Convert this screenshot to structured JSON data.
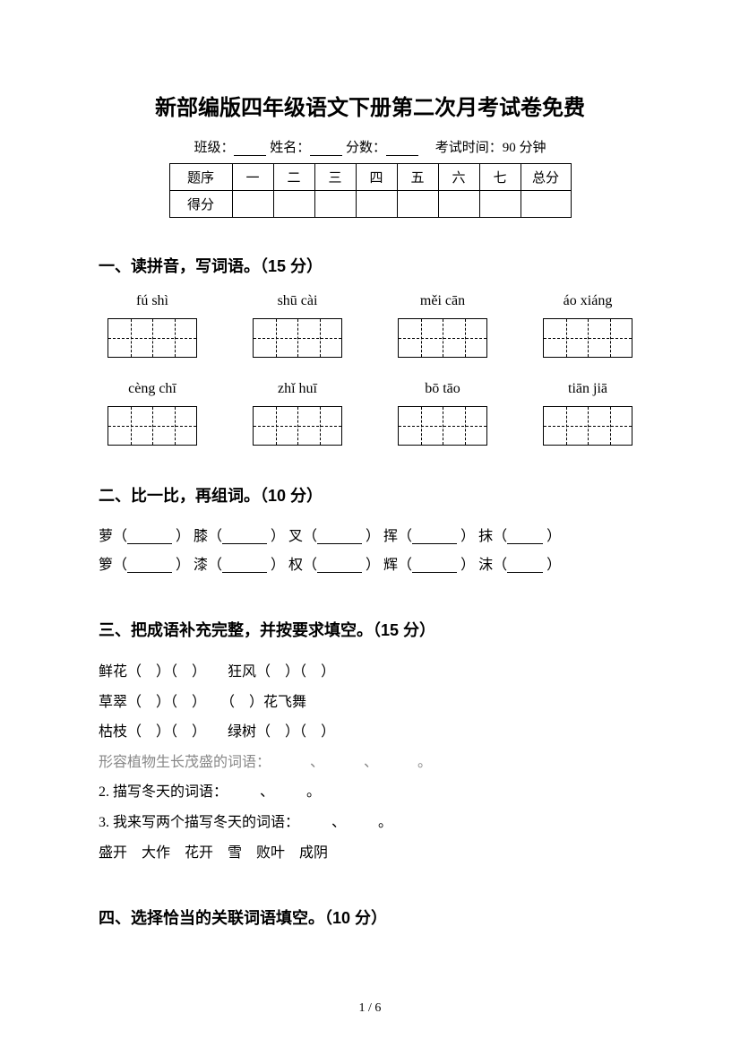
{
  "title": "新部编版四年级语文下册第二次月考试卷免费",
  "meta": {
    "class_label": "班级：",
    "name_label": "姓名：",
    "score_label": "分数：",
    "time_label": "考试时间：90 分钟"
  },
  "score_table": {
    "row1": [
      "题序",
      "一",
      "二",
      "三",
      "四",
      "五",
      "六",
      "七",
      "总分"
    ],
    "row2_label": "得分"
  },
  "s1": {
    "head": "一、读拼音，写词语。（15 分）",
    "row1": [
      "fú shì",
      "shū cài",
      "měi cān",
      "áo xiáng"
    ],
    "row2": [
      "cèng chī",
      "zhǐ huī",
      "bō tāo",
      "tiān jiā"
    ]
  },
  "s2": {
    "head": "二、比一比，再组词。（10 分）",
    "line1": {
      "a": "萝（",
      "b": "） 膝（",
      "c": "） 叉（",
      "d": "） 挥（",
      "e": "） 抹（",
      "f": "）"
    },
    "line2": {
      "a": "箩（",
      "b": "） 漆（",
      "c": "） 权（",
      "d": "） 辉（",
      "e": "） 沫（",
      "f": "）"
    }
  },
  "s3": {
    "head": "三、把成语补充完整，并按要求填空。（15 分）",
    "l1a": "鲜花（",
    "l1b": "）（",
    "l1c": "）　　狂风（",
    "l1d": "）（",
    "l1e": "）",
    "l2a": "草翠（",
    "l2b": "）（",
    "l2c": "）　　（",
    "l2d": "）花飞舞",
    "l3a": "枯枝（",
    "l3b": "）（",
    "l3c": "）　　绿树（",
    "l3d": "）（",
    "l3e": "）",
    "l4": "形容植物生长茂盛的词语：",
    "l4sep": "、",
    "l4end": "。",
    "l5": "2. 描写冬天的词语：",
    "l6": "3. 我来写两个描写冬天的词语：",
    "l7": "盛开　大作　花开　雪　败叶　成阴"
  },
  "s4": {
    "head": "四、选择恰当的关联词语填空。（10 分）"
  },
  "page_num": "1 / 6",
  "colors": {
    "text": "#000000",
    "background": "#ffffff",
    "gray_text": "#888888"
  }
}
